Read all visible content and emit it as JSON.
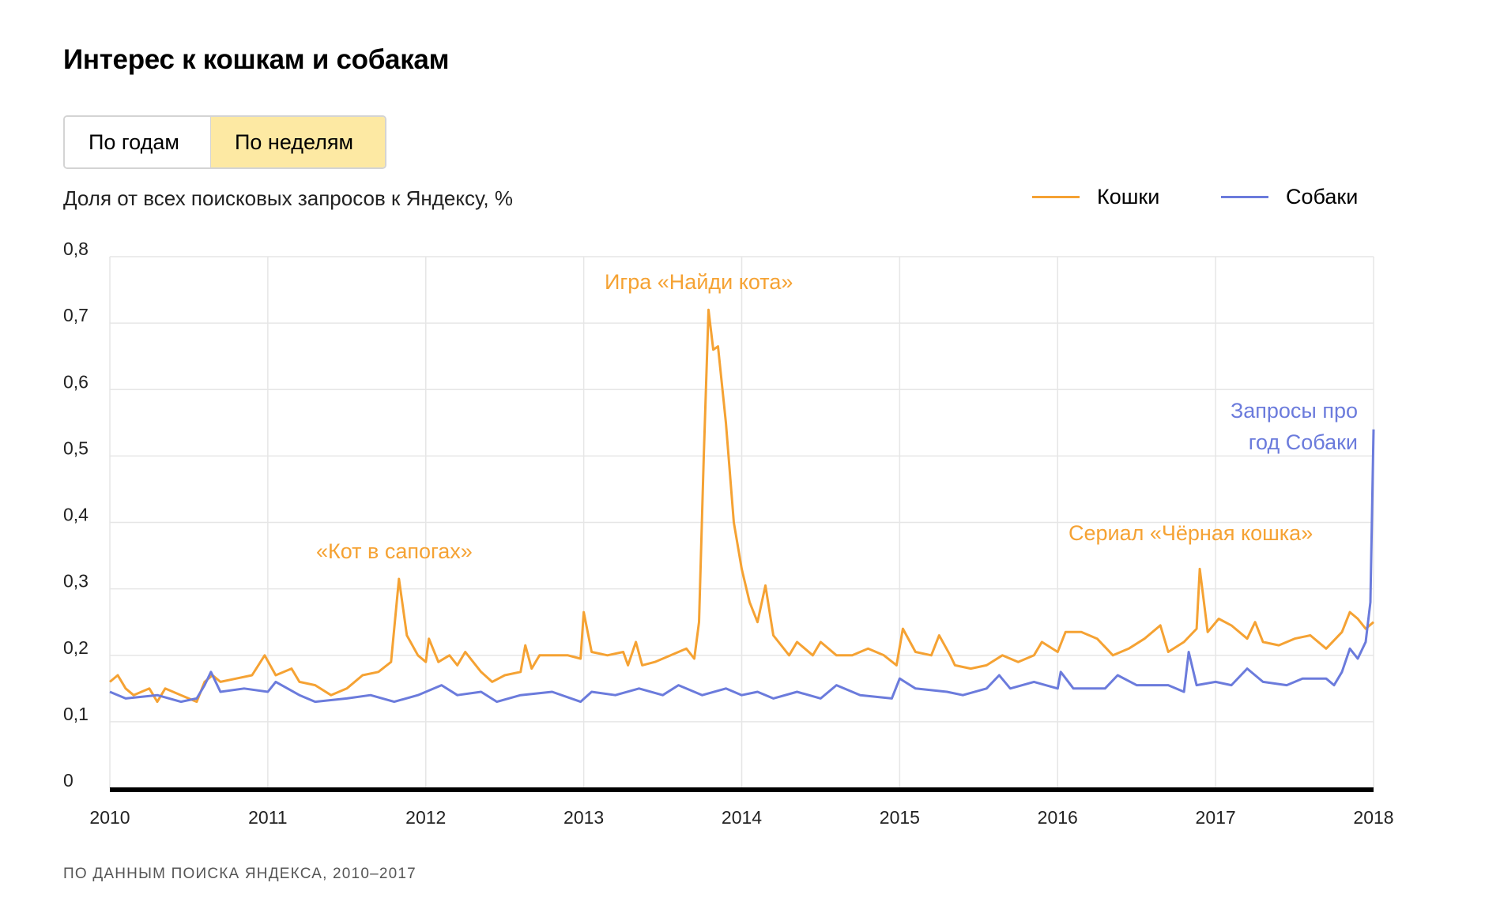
{
  "title": "Интерес к кошкам и собакам",
  "toggle": {
    "by_years": "По годам",
    "by_weeks": "По неделям",
    "selected": "by_weeks"
  },
  "footnote": "ПО ДАННЫМ ПОИСКА ЯНДЕКСА, 2010–2017",
  "chart_data": {
    "type": "line",
    "ylabel": "Доля от всех поисковых запросов к Яндексу, %",
    "ylim": [
      0,
      0.8
    ],
    "xlim": [
      2010,
      2018
    ],
    "yticks": [
      "0",
      "0,1",
      "0,2",
      "0,3",
      "0,4",
      "0,5",
      "0,6",
      "0,7",
      "0,8"
    ],
    "xticks": [
      "2010",
      "2011",
      "2012",
      "2013",
      "2014",
      "2015",
      "2016",
      "2017",
      "2018"
    ],
    "grid": true,
    "legend_position": "top-right",
    "series": [
      {
        "name": "Кошки",
        "color": "#f5a233",
        "x": [
          2010.0,
          2010.05,
          2010.1,
          2010.15,
          2010.25,
          2010.3,
          2010.35,
          2010.45,
          2010.55,
          2010.6,
          2010.65,
          2010.7,
          2010.8,
          2010.9,
          2010.98,
          2011.05,
          2011.15,
          2011.2,
          2011.3,
          2011.4,
          2011.5,
          2011.6,
          2011.7,
          2011.78,
          2011.83,
          2011.88,
          2011.95,
          2012.0,
          2012.02,
          2012.08,
          2012.15,
          2012.2,
          2012.25,
          2012.3,
          2012.35,
          2012.42,
          2012.5,
          2012.6,
          2012.63,
          2012.67,
          2012.72,
          2012.8,
          2012.9,
          2012.98,
          2013.0,
          2013.05,
          2013.15,
          2013.25,
          2013.28,
          2013.33,
          2013.37,
          2013.45,
          2013.55,
          2013.65,
          2013.7,
          2013.73,
          2013.76,
          2013.79,
          2013.82,
          2013.85,
          2013.9,
          2013.95,
          2014.0,
          2014.05,
          2014.1,
          2014.15,
          2014.2,
          2014.3,
          2014.35,
          2014.45,
          2014.5,
          2014.6,
          2014.7,
          2014.8,
          2014.9,
          2014.98,
          2015.02,
          2015.1,
          2015.2,
          2015.25,
          2015.32,
          2015.35,
          2015.45,
          2015.55,
          2015.65,
          2015.75,
          2015.85,
          2015.9,
          2016.0,
          2016.05,
          2016.15,
          2016.25,
          2016.35,
          2016.45,
          2016.55,
          2016.65,
          2016.7,
          2016.8,
          2016.88,
          2016.9,
          2016.95,
          2017.02,
          2017.1,
          2017.2,
          2017.25,
          2017.3,
          2017.4,
          2017.5,
          2017.6,
          2017.7,
          2017.8,
          2017.85,
          2017.9,
          2017.95,
          2018.0
        ],
        "y": [
          0.16,
          0.17,
          0.15,
          0.14,
          0.15,
          0.13,
          0.15,
          0.14,
          0.13,
          0.16,
          0.17,
          0.16,
          0.165,
          0.17,
          0.2,
          0.17,
          0.18,
          0.16,
          0.155,
          0.14,
          0.15,
          0.17,
          0.175,
          0.19,
          0.315,
          0.23,
          0.2,
          0.19,
          0.225,
          0.19,
          0.2,
          0.185,
          0.205,
          0.19,
          0.175,
          0.16,
          0.17,
          0.175,
          0.215,
          0.18,
          0.2,
          0.2,
          0.2,
          0.195,
          0.265,
          0.205,
          0.2,
          0.205,
          0.185,
          0.22,
          0.185,
          0.19,
          0.2,
          0.21,
          0.195,
          0.25,
          0.5,
          0.72,
          0.66,
          0.665,
          0.55,
          0.4,
          0.33,
          0.28,
          0.25,
          0.305,
          0.23,
          0.2,
          0.22,
          0.2,
          0.22,
          0.2,
          0.2,
          0.21,
          0.2,
          0.185,
          0.24,
          0.205,
          0.2,
          0.23,
          0.2,
          0.185,
          0.18,
          0.185,
          0.2,
          0.19,
          0.2,
          0.22,
          0.205,
          0.235,
          0.235,
          0.225,
          0.2,
          0.21,
          0.225,
          0.245,
          0.205,
          0.22,
          0.24,
          0.33,
          0.235,
          0.255,
          0.245,
          0.225,
          0.25,
          0.22,
          0.215,
          0.225,
          0.23,
          0.21,
          0.235,
          0.265,
          0.255,
          0.24,
          0.25
        ]
      },
      {
        "name": "Собаки",
        "color": "#6b7bdc",
        "x": [
          2010.0,
          2010.1,
          2010.3,
          2010.45,
          2010.55,
          2010.6,
          2010.64,
          2010.7,
          2010.85,
          2011.0,
          2011.05,
          2011.2,
          2011.3,
          2011.5,
          2011.65,
          2011.8,
          2011.95,
          2012.1,
          2012.2,
          2012.35,
          2012.45,
          2012.6,
          2012.8,
          2012.98,
          2013.05,
          2013.2,
          2013.35,
          2013.5,
          2013.6,
          2013.75,
          2013.9,
          2014.0,
          2014.1,
          2014.2,
          2014.35,
          2014.5,
          2014.6,
          2014.75,
          2014.95,
          2015.0,
          2015.1,
          2015.3,
          2015.4,
          2015.55,
          2015.63,
          2015.7,
          2015.85,
          2016.0,
          2016.02,
          2016.1,
          2016.3,
          2016.38,
          2016.5,
          2016.7,
          2016.8,
          2016.83,
          2016.88,
          2017.0,
          2017.1,
          2017.2,
          2017.3,
          2017.45,
          2017.55,
          2017.7,
          2017.75,
          2017.8,
          2017.85,
          2017.9,
          2017.95,
          2017.98,
          2018.0
        ],
        "y": [
          0.145,
          0.135,
          0.14,
          0.13,
          0.135,
          0.155,
          0.175,
          0.145,
          0.15,
          0.145,
          0.16,
          0.14,
          0.13,
          0.135,
          0.14,
          0.13,
          0.14,
          0.155,
          0.14,
          0.145,
          0.13,
          0.14,
          0.145,
          0.13,
          0.145,
          0.14,
          0.15,
          0.14,
          0.155,
          0.14,
          0.15,
          0.14,
          0.145,
          0.135,
          0.145,
          0.135,
          0.155,
          0.14,
          0.135,
          0.165,
          0.15,
          0.145,
          0.14,
          0.15,
          0.17,
          0.15,
          0.16,
          0.15,
          0.175,
          0.15,
          0.15,
          0.17,
          0.155,
          0.155,
          0.145,
          0.205,
          0.155,
          0.16,
          0.155,
          0.18,
          0.16,
          0.155,
          0.165,
          0.165,
          0.155,
          0.175,
          0.21,
          0.195,
          0.22,
          0.28,
          0.54
        ]
      }
    ],
    "annotations": [
      {
        "text": "«Кот в сапогах»",
        "series": "Кошки",
        "x": 2011.83
      },
      {
        "text": "Игра «Найди кота»",
        "series": "Кошки",
        "x": 2013.79
      },
      {
        "text": "Сериал «Чёрная кошка»",
        "series": "Кошки",
        "x": 2016.9
      },
      {
        "text": "Запросы про",
        "text2": "год Собаки",
        "series": "Собаки",
        "x": 2018.0
      }
    ]
  }
}
